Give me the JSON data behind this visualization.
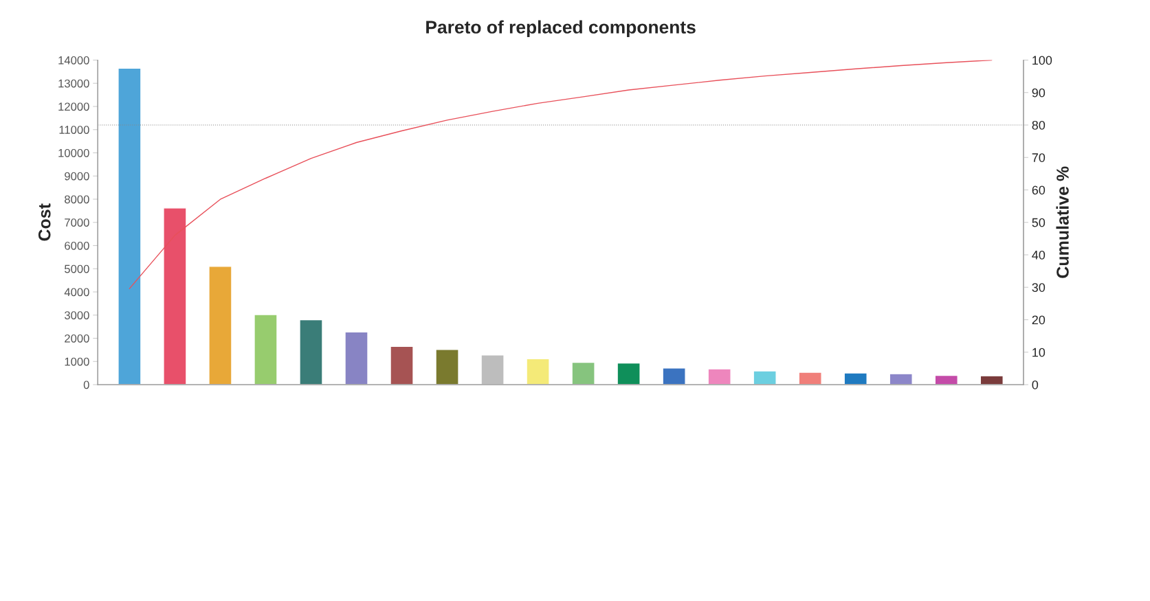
{
  "chart_data": {
    "type": "bar",
    "title": "Pareto of replaced components",
    "ylabel": "Cost",
    "y2label": "Cumulative %",
    "categories": [
      null,
      null,
      null,
      null,
      null,
      null,
      null,
      null,
      null,
      null,
      null,
      null,
      null,
      null,
      null,
      null,
      null,
      null,
      null,
      null
    ],
    "series": [
      {
        "colors": [
          "#4ea5d9",
          "#e8506a",
          "#e8a838",
          "#97cc6e",
          "#3a7d78",
          "#8884c4",
          "#a65353",
          "#7a7a2e",
          "#bdbdbd",
          "#f4ea78",
          "#86c47e",
          "#0f8f5a",
          "#3b73c0",
          "#ee86bd",
          "#6ccfe0",
          "#f07f7a",
          "#1f7ac0",
          "#8c86c9",
          "#c44ba8",
          "#7a3b3b"
        ],
        "values": [
          13650,
          7620,
          5100,
          3020,
          2800,
          2270,
          1650,
          1520,
          1280,
          1120,
          960,
          930,
          720,
          680,
          590,
          530,
          500,
          470,
          400,
          380
        ]
      },
      {
        "type": "line",
        "axis": "y2",
        "color": "#e8505a",
        "values": [
          29.6,
          46.0,
          57.1,
          63.6,
          69.7,
          74.6,
          78.2,
          81.5,
          84.2,
          86.7,
          88.7,
          90.8,
          92.3,
          93.8,
          95.1,
          96.2,
          97.3,
          98.3,
          99.2,
          100
        ]
      }
    ],
    "ylim": [
      0,
      14000
    ],
    "yticks": [
      0,
      1000,
      2000,
      3000,
      4000,
      5000,
      6000,
      7000,
      8000,
      9000,
      10000,
      11000,
      12000,
      13000,
      14000
    ],
    "y2lim": [
      0,
      100
    ],
    "y2ticks": [
      0,
      10,
      20,
      30,
      40,
      50,
      60,
      70,
      80,
      90,
      100
    ],
    "ref_lines": [
      {
        "axis": "y2",
        "value": 80,
        "color": "#888888",
        "line_style": "dotted"
      }
    ],
    "tick_labels": "y",
    "grid": false,
    "legend": false
  }
}
